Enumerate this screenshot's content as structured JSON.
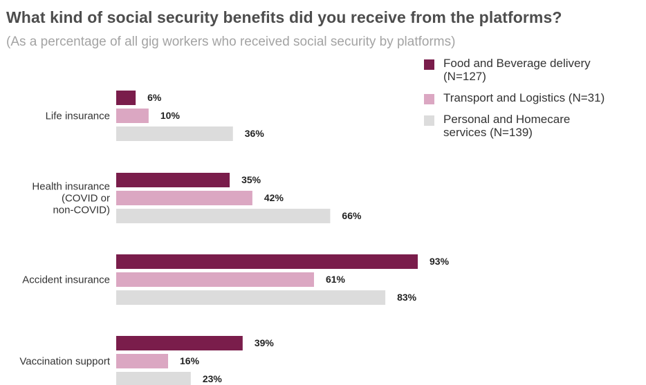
{
  "header": {
    "title": "What kind of social security benefits did you receive from the platforms?",
    "subtitle": "(As a percentage of all gig workers who received social security by platforms)"
  },
  "colors": {
    "food": "#7a1d4b",
    "transport": "#dba7c2",
    "personal": "#dcdcdc"
  },
  "chart_data": {
    "type": "bar",
    "orientation": "horizontal",
    "title": "What kind of social security benefits did you receive from the platforms?",
    "subtitle": "(As a percentage of all gig workers who received social security by platforms)",
    "categories": [
      "Life insurance",
      "Health insurance\n(COVID or\nnon-COVID)",
      "Accident insurance",
      "Vaccination support"
    ],
    "series": [
      {
        "name": "Food and Beverage delivery\n(N=127)",
        "values": [
          6,
          35,
          93,
          39
        ],
        "labels": [
          "6%",
          "35%",
          "93%",
          "39%"
        ]
      },
      {
        "name": "Transport and Logistics (N=31)",
        "values": [
          10,
          42,
          61,
          16
        ],
        "labels": [
          "10%",
          "42%",
          "61%",
          "16%"
        ]
      },
      {
        "name": "Personal and Homecare\nservices (N=139)",
        "values": [
          36,
          66,
          83,
          23
        ],
        "labels": [
          "36%",
          "66%",
          "83%",
          "23%"
        ]
      }
    ],
    "xlim": [
      0,
      100
    ],
    "grid": false,
    "legend_position": "top-right",
    "unit": "%"
  }
}
